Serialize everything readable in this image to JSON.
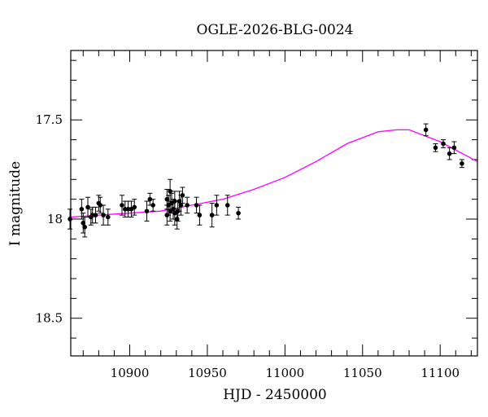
{
  "chart_data": {
    "type": "scatter",
    "title": "OGLE-2026-BLG-0024",
    "xlabel": "HJD - 2450000",
    "ylabel": "I magnitude",
    "xlim": [
      10862,
      11124
    ],
    "ylim": [
      18.69,
      17.15
    ],
    "y_inverted": true,
    "grid": false,
    "x_ticks": [
      10900,
      10950,
      11000,
      11050,
      11100
    ],
    "x_tick_labels": [
      "10900",
      "10950",
      "11000",
      "11050",
      "11100"
    ],
    "y_ticks": [
      17.5,
      18,
      18.5
    ],
    "y_tick_labels": [
      "17.5",
      "18",
      "18.5"
    ],
    "colors": {
      "points": "#000000",
      "model": "#ff00ff"
    },
    "points": {
      "x": [
        10861.5,
        10869,
        10870,
        10871,
        10873,
        10875,
        10876,
        10878,
        10880,
        10881,
        10883,
        10886,
        10895,
        10897,
        10899,
        10901,
        10903,
        10911,
        10913,
        10915,
        10924,
        10926,
        10925,
        10924,
        10926,
        10927,
        10928,
        10929,
        10929,
        10930.5,
        10931,
        10932,
        10933,
        10934,
        10937,
        10943,
        10945,
        10953,
        10956,
        10963,
        10970,
        11090.8,
        11097,
        11102,
        11106,
        11109,
        11114
      ],
      "y": [
        18.0,
        17.95,
        18.02,
        18.04,
        17.94,
        17.99,
        17.98,
        17.98,
        17.92,
        17.93,
        17.98,
        17.99,
        17.93,
        17.95,
        17.95,
        17.95,
        17.94,
        17.96,
        17.9,
        17.93,
        17.9,
        17.86,
        17.93,
        17.98,
        17.96,
        17.92,
        17.95,
        17.97,
        17.91,
        18.0,
        17.96,
        17.91,
        17.93,
        17.88,
        17.93,
        17.93,
        17.98,
        17.98,
        17.93,
        17.93,
        17.97,
        17.55,
        17.64,
        17.62,
        17.67,
        17.64,
        17.72
      ],
      "yerr": [
        0.05,
        0.05,
        0.05,
        0.05,
        0.05,
        0.04,
        0.04,
        0.04,
        0.04,
        0.04,
        0.05,
        0.04,
        0.05,
        0.04,
        0.04,
        0.04,
        0.04,
        0.05,
        0.03,
        0.03,
        0.05,
        0.06,
        0.05,
        0.05,
        0.05,
        0.05,
        0.05,
        0.06,
        0.05,
        0.05,
        0.05,
        0.05,
        0.05,
        0.04,
        0.04,
        0.04,
        0.05,
        0.06,
        0.05,
        0.05,
        0.03,
        0.03,
        0.02,
        0.02,
        0.03,
        0.03,
        0.02
      ]
    },
    "model": {
      "x": [
        10862,
        10880,
        10900,
        10920,
        10940,
        10960,
        10980,
        11000,
        11020,
        11040,
        11060,
        11072,
        11080,
        11100,
        11124
      ],
      "y": [
        17.99,
        17.98,
        17.97,
        17.96,
        17.93,
        17.9,
        17.85,
        17.79,
        17.71,
        17.62,
        17.56,
        17.55,
        17.55,
        17.61,
        17.71
      ]
    }
  }
}
